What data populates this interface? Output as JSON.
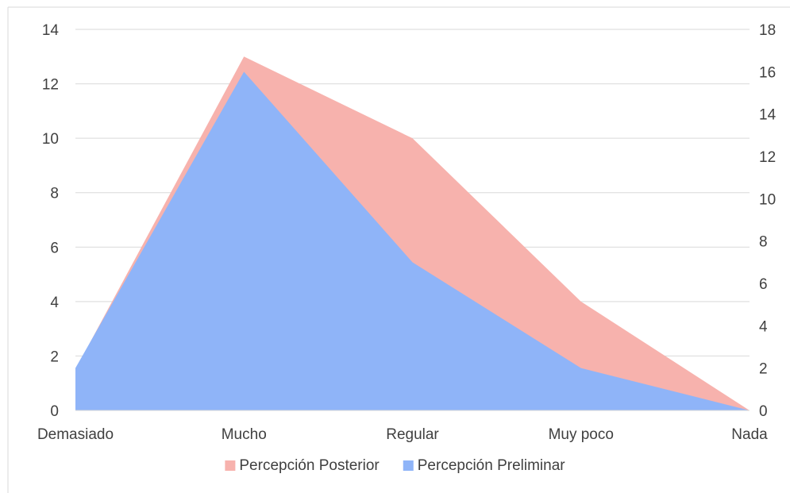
{
  "chart_data": {
    "type": "area",
    "categories": [
      "Demasiado",
      "Mucho",
      "Regular",
      "Muy poco",
      "Nada"
    ],
    "series": [
      {
        "name": "Percepción Posterior",
        "axis": "left",
        "values": [
          1.5,
          13,
          10,
          4,
          0
        ],
        "color": "#f7b2ad"
      },
      {
        "name": "Percepción Preliminar",
        "axis": "right",
        "values": [
          2,
          16,
          7,
          2,
          0
        ],
        "color": "#8fb4f8"
      }
    ],
    "y_left": {
      "min": 0,
      "max": 14,
      "ticks": [
        0,
        2,
        4,
        6,
        8,
        10,
        12,
        14
      ]
    },
    "y_right": {
      "min": 0,
      "max": 18,
      "ticks": [
        0,
        2,
        4,
        6,
        8,
        10,
        12,
        14,
        16,
        18
      ]
    },
    "grid": true,
    "legend": "bottom"
  }
}
